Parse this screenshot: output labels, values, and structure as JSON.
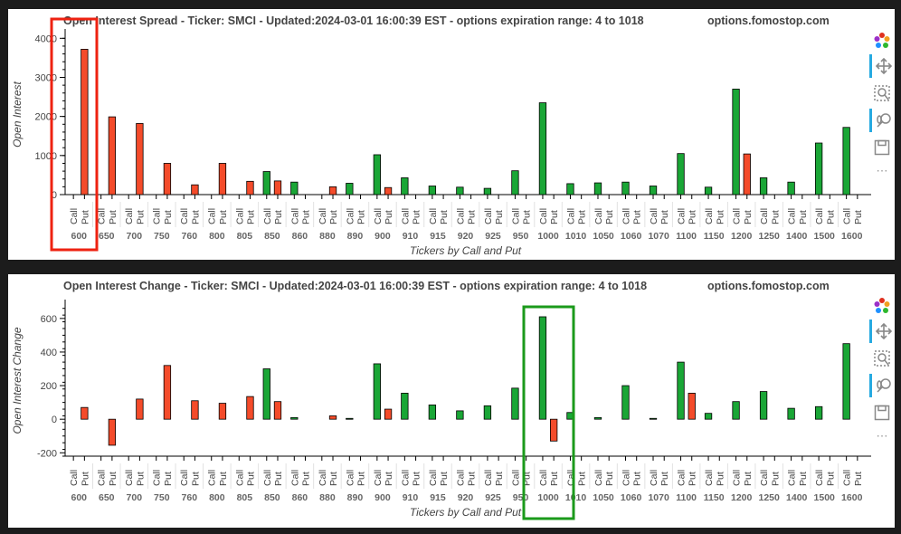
{
  "colors": {
    "put": "#f44b2a",
    "call": "#1aa636",
    "stroke": "#000000",
    "highlight_red": "#ee2211",
    "highlight_green": "#1b9a1b"
  },
  "tickers": [
    "600",
    "650",
    "700",
    "750",
    "760",
    "800",
    "805",
    "850",
    "860",
    "880",
    "890",
    "900",
    "910",
    "915",
    "920",
    "925",
    "950",
    "1000",
    "1010",
    "1050",
    "1060",
    "1070",
    "1100",
    "1150",
    "1200",
    "1250",
    "1400",
    "1500",
    "1600"
  ],
  "toolbar": {
    "icons": [
      "bokeh-logo-icon",
      "pan-icon",
      "box-zoom-icon",
      "wheel-zoom-icon",
      "save-icon",
      "more-icon"
    ],
    "more_label": "⋯"
  },
  "chart_data": [
    {
      "type": "bar",
      "title": "Open Interest Spread - Ticker: SMCI - Updated:2024-03-01 16:00:39 EST - options expiration range: 4 to 1018",
      "site": "options.fomostop.com",
      "xlabel": "Tickers by Call and Put",
      "ylabel": "Open Interest",
      "ylim": [
        0,
        4100
      ],
      "yticks": [
        0,
        1000,
        2000,
        3000,
        4000
      ],
      "sub_labels": [
        "Call",
        "Put"
      ],
      "series": [
        {
          "name": "Call",
          "values": [
            0,
            0,
            0,
            0,
            0,
            0,
            0,
            590,
            320,
            0,
            290,
            1020,
            430,
            220,
            190,
            160,
            610,
            2350,
            280,
            300,
            320,
            220,
            1050,
            190,
            2700,
            430,
            320,
            1320,
            1720
          ]
        },
        {
          "name": "Put",
          "values": [
            3720,
            1990,
            1820,
            800,
            250,
            800,
            340,
            350,
            0,
            200,
            0,
            180,
            0,
            0,
            0,
            0,
            0,
            0,
            0,
            0,
            0,
            0,
            0,
            0,
            1040,
            0,
            0,
            0,
            0
          ]
        }
      ]
    },
    {
      "type": "bar",
      "title": "Open Interest Change - Ticker: SMCI - Updated:2024-03-01 16:00:39 EST - options expiration range: 4 to 1018",
      "site": "options.fomostop.com",
      "xlabel": "Tickers by Call and Put",
      "ylabel": "Open Interest Change",
      "ylim": [
        -220,
        680
      ],
      "yticks": [
        -200,
        0,
        200,
        400,
        600
      ],
      "sub_labels": [
        "Call",
        "Put"
      ],
      "series": [
        {
          "name": "Call",
          "values": [
            0,
            0,
            0,
            0,
            0,
            0,
            0,
            300,
            10,
            0,
            5,
            330,
            155,
            85,
            50,
            80,
            185,
            610,
            40,
            10,
            200,
            5,
            340,
            35,
            105,
            165,
            65,
            75,
            450
          ]
        },
        {
          "name": "Put",
          "values": [
            70,
            -155,
            120,
            320,
            110,
            95,
            135,
            105,
            0,
            20,
            0,
            60,
            0,
            0,
            0,
            0,
            0,
            -130,
            0,
            0,
            0,
            0,
            155,
            0,
            0,
            0,
            0,
            0,
            0
          ]
        }
      ]
    }
  ]
}
